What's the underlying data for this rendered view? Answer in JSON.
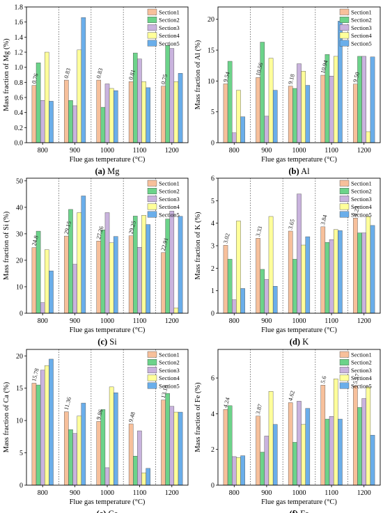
{
  "colors": {
    "Section1": "#F7C09B",
    "Section2": "#6CD38A",
    "Section3": "#C9B3DE",
    "Section4": "#FFFF9A",
    "Section5": "#6AAEEA"
  },
  "chart_data": [
    {
      "type": "bar",
      "xlabel": "Flue gas temperature (°C)",
      "ylabel": "Mass fraction of Mg (%)",
      "caption_letter": "(a)",
      "caption_element": "Mg",
      "categories": [
        "800",
        "900",
        "1000",
        "1100",
        "1200"
      ],
      "ylim": [
        0,
        1.8
      ],
      "yticks": [
        "0.0",
        "0.2",
        "0.4",
        "0.6",
        "0.8",
        "1.0",
        "1.2",
        "1.4",
        "1.6",
        "1.8"
      ],
      "series": [
        {
          "name": "Section1",
          "values": [
            0.76,
            0.83,
            0.83,
            0.81,
            0.75
          ]
        },
        {
          "name": "Section2",
          "values": [
            1.06,
            0.56,
            0.47,
            1.19,
            1.29
          ]
        },
        {
          "name": "Section3",
          "values": [
            0.56,
            0.49,
            0.78,
            1.11,
            1.25
          ]
        },
        {
          "name": "Section4",
          "values": [
            1.2,
            1.23,
            0.72,
            0.81,
            0.81
          ]
        },
        {
          "name": "Section5",
          "values": [
            0.55,
            1.66,
            0.69,
            0.73,
            0.92
          ]
        }
      ],
      "value_labels": [
        "0.76",
        "0.83",
        "0.83",
        "0.81",
        "0.75"
      ]
    },
    {
      "type": "bar",
      "xlabel": "Flue gas temperature (°C)",
      "ylabel": "Mass fraction of Al (%)",
      "caption_letter": "(b)",
      "caption_element": "Al",
      "categories": [
        "800",
        "900",
        "1000",
        "1100",
        "1200"
      ],
      "ylim": [
        0,
        22
      ],
      "yticks": [
        "0",
        "5",
        "10",
        "15",
        "20"
      ],
      "series": [
        {
          "name": "Section1",
          "values": [
            9.54,
            10.56,
            9.18,
            10.94,
            9.5
          ]
        },
        {
          "name": "Section2",
          "values": [
            13.2,
            16.3,
            8.8,
            14.3,
            14.0
          ]
        },
        {
          "name": "Section3",
          "values": [
            1.6,
            4.3,
            12.8,
            10.8,
            14.0
          ]
        },
        {
          "name": "Section4",
          "values": [
            8.5,
            13.7,
            11.6,
            14.0,
            1.8
          ]
        },
        {
          "name": "Section5",
          "values": [
            4.2,
            8.5,
            9.3,
            19.7,
            13.9
          ]
        }
      ],
      "value_labels": [
        "9.54",
        "10.56",
        "9.18",
        "10.94",
        "9.50"
      ]
    },
    {
      "type": "bar",
      "xlabel": "Flue gas temperature (°C)",
      "ylabel": "Mass fraction of Si (%)",
      "caption_letter": "(c)",
      "caption_element": "Si",
      "categories": [
        "800",
        "900",
        "1000",
        "1100",
        "1200"
      ],
      "ylim": [
        0,
        51
      ],
      "yticks": [
        "0",
        "10",
        "20",
        "30",
        "40",
        "50"
      ],
      "series": [
        {
          "name": "Section1",
          "values": [
            24.8,
            29.15,
            27.26,
            29.25,
            22.91
          ]
        },
        {
          "name": "Section2",
          "values": [
            31.0,
            39.2,
            31.5,
            36.7,
            35.6
          ]
        },
        {
          "name": "Section3",
          "values": [
            4.0,
            18.5,
            38.0,
            24.9,
            38.6
          ]
        },
        {
          "name": "Section4",
          "values": [
            24.0,
            38.0,
            26.6,
            37.0,
            2.0
          ]
        },
        {
          "name": "Section5",
          "values": [
            16.0,
            44.3,
            29.0,
            33.5,
            36.6
          ]
        }
      ],
      "value_labels": [
        "24.8",
        "29.15",
        "27.26",
        "29.25",
        "22.91"
      ]
    },
    {
      "type": "bar",
      "xlabel": "Flue gas temperature (°C)",
      "ylabel": "Mass fraction of K (%)",
      "caption_letter": "(d)",
      "caption_element": "K",
      "categories": [
        "800",
        "900",
        "1000",
        "1100",
        "1200"
      ],
      "ylim": [
        0,
        6
      ],
      "yticks": [
        "0",
        "1",
        "2",
        "3",
        "4",
        "5",
        "6"
      ],
      "series": [
        {
          "name": "Section1",
          "values": [
            3.02,
            3.33,
            3.65,
            3.84,
            4.23
          ]
        },
        {
          "name": "Section2",
          "values": [
            2.4,
            1.95,
            2.4,
            3.15,
            3.57
          ]
        },
        {
          "name": "Section3",
          "values": [
            0.6,
            1.5,
            5.3,
            3.27,
            3.57
          ]
        },
        {
          "name": "Section4",
          "values": [
            4.1,
            4.3,
            3.03,
            3.72,
            4.3
          ]
        },
        {
          "name": "Section5",
          "values": [
            1.1,
            1.2,
            3.4,
            3.67,
            3.9
          ]
        }
      ],
      "value_labels": [
        "3.02",
        "3.33",
        "3.65",
        "3.84",
        "4.23"
      ]
    },
    {
      "type": "bar",
      "xlabel": "Flue gas temperature (°C)",
      "ylabel": "Mass fraction of Ca (%)",
      "caption_letter": "(e)",
      "caption_element": "Ca",
      "categories": [
        "800",
        "900",
        "1000",
        "1100",
        "1200"
      ],
      "ylim": [
        0,
        21
      ],
      "yticks": [
        "0",
        "5",
        "10",
        "15",
        "20"
      ],
      "series": [
        {
          "name": "Section1",
          "values": [
            15.78,
            11.36,
            9.86,
            9.48,
            13.18
          ]
        },
        {
          "name": "Section2",
          "values": [
            15.5,
            8.6,
            11.7,
            4.5,
            14.2
          ]
        },
        {
          "name": "Section3",
          "values": [
            17.8,
            8.0,
            2.7,
            8.4,
            12.2
          ]
        },
        {
          "name": "Section4",
          "values": [
            18.5,
            10.7,
            15.2,
            1.9,
            11.3
          ]
        },
        {
          "name": "Section5",
          "values": [
            19.5,
            12.7,
            14.3,
            2.6,
            11.3
          ]
        }
      ],
      "value_labels": [
        "15.78",
        "11.36",
        "9.86",
        "9.48",
        "13.18"
      ]
    },
    {
      "type": "bar",
      "xlabel": "Flue gas temperature (°C)",
      "ylabel": "Mass fraction of Fe (%)",
      "caption_letter": "(f)",
      "caption_element": "Fe",
      "categories": [
        "800",
        "900",
        "1000",
        "1100",
        "1200"
      ],
      "ylim": [
        0,
        7.6
      ],
      "yticks": [
        "0",
        "2",
        "4",
        "6"
      ],
      "series": [
        {
          "name": "Section1",
          "values": [
            4.24,
            3.87,
            4.62,
            5.6,
            5.57
          ]
        },
        {
          "name": "Section2",
          "values": [
            4.45,
            1.85,
            2.4,
            3.7,
            4.35
          ]
        },
        {
          "name": "Section3",
          "values": [
            1.6,
            2.75,
            4.7,
            3.85,
            4.85
          ]
        },
        {
          "name": "Section4",
          "values": [
            1.55,
            5.25,
            3.4,
            5.95,
            5.5
          ]
        },
        {
          "name": "Section5",
          "values": [
            1.65,
            3.4,
            4.3,
            3.7,
            2.8
          ]
        }
      ],
      "value_labels": [
        "4.24",
        "3.87",
        "4.62",
        "5.6",
        "5.57"
      ]
    }
  ]
}
